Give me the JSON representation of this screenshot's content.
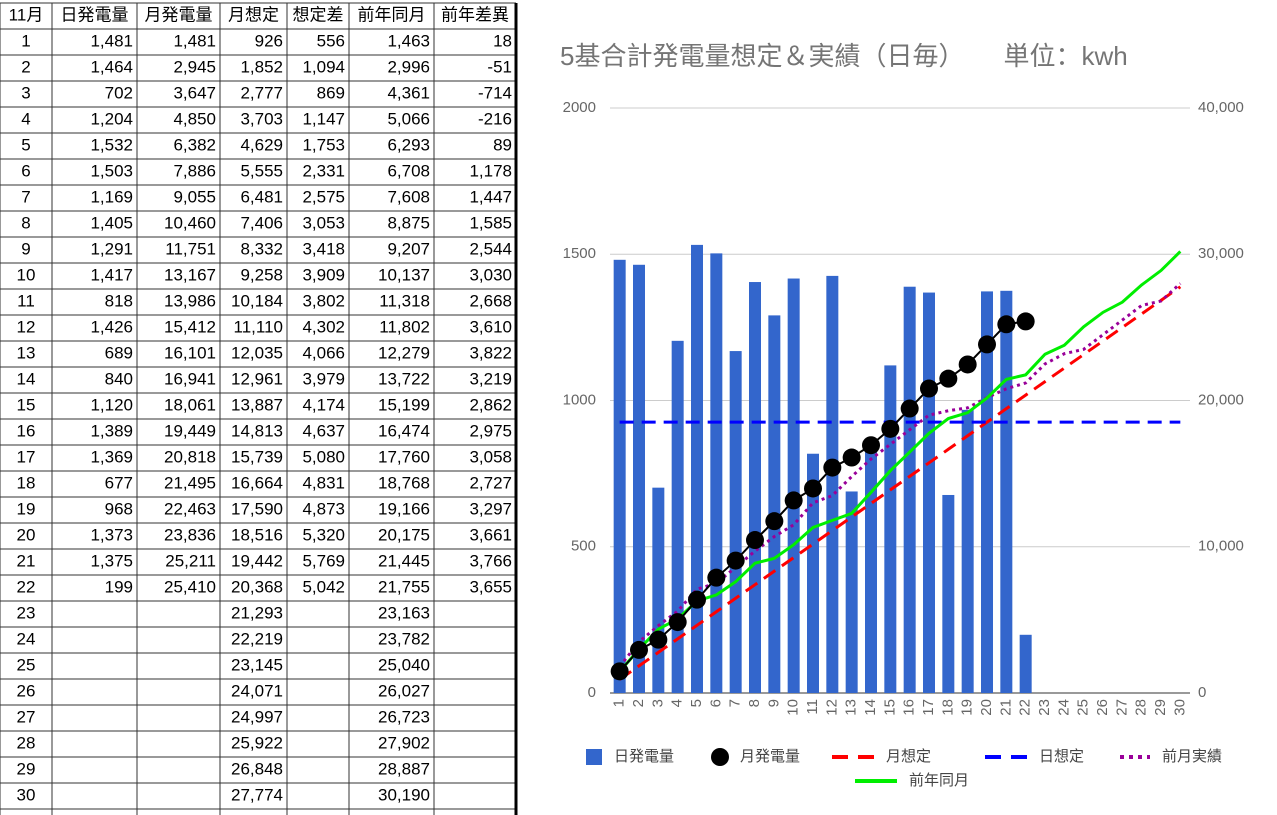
{
  "table": {
    "header": [
      "11月",
      "日発電量",
      "月発電量",
      "月想定",
      "想定差",
      "前年同月",
      "前年差異"
    ],
    "rows": [
      [
        "1",
        "1,481",
        "1,481",
        "926",
        "556",
        "1,463",
        "18"
      ],
      [
        "2",
        "1,464",
        "2,945",
        "1,852",
        "1,094",
        "2,996",
        "-51"
      ],
      [
        "3",
        "702",
        "3,647",
        "2,777",
        "869",
        "4,361",
        "-714"
      ],
      [
        "4",
        "1,204",
        "4,850",
        "3,703",
        "1,147",
        "5,066",
        "-216"
      ],
      [
        "5",
        "1,532",
        "6,382",
        "4,629",
        "1,753",
        "6,293",
        "89"
      ],
      [
        "6",
        "1,503",
        "7,886",
        "5,555",
        "2,331",
        "6,708",
        "1,178"
      ],
      [
        "7",
        "1,169",
        "9,055",
        "6,481",
        "2,575",
        "7,608",
        "1,447"
      ],
      [
        "8",
        "1,405",
        "10,460",
        "7,406",
        "3,053",
        "8,875",
        "1,585"
      ],
      [
        "9",
        "1,291",
        "11,751",
        "8,332",
        "3,418",
        "9,207",
        "2,544"
      ],
      [
        "10",
        "1,417",
        "13,167",
        "9,258",
        "3,909",
        "10,137",
        "3,030"
      ],
      [
        "11",
        "818",
        "13,986",
        "10,184",
        "3,802",
        "11,318",
        "2,668"
      ],
      [
        "12",
        "1,426",
        "15,412",
        "11,110",
        "4,302",
        "11,802",
        "3,610"
      ],
      [
        "13",
        "689",
        "16,101",
        "12,035",
        "4,066",
        "12,279",
        "3,822"
      ],
      [
        "14",
        "840",
        "16,941",
        "12,961",
        "3,979",
        "13,722",
        "3,219"
      ],
      [
        "15",
        "1,120",
        "18,061",
        "13,887",
        "4,174",
        "15,199",
        "2,862"
      ],
      [
        "16",
        "1,389",
        "19,449",
        "14,813",
        "4,637",
        "16,474",
        "2,975"
      ],
      [
        "17",
        "1,369",
        "20,818",
        "15,739",
        "5,080",
        "17,760",
        "3,058"
      ],
      [
        "18",
        "677",
        "21,495",
        "16,664",
        "4,831",
        "18,768",
        "2,727"
      ],
      [
        "19",
        "968",
        "22,463",
        "17,590",
        "4,873",
        "19,166",
        "3,297"
      ],
      [
        "20",
        "1,373",
        "23,836",
        "18,516",
        "5,320",
        "20,175",
        "3,661"
      ],
      [
        "21",
        "1,375",
        "25,211",
        "19,442",
        "5,769",
        "21,445",
        "3,766"
      ],
      [
        "22",
        "199",
        "25,410",
        "20,368",
        "5,042",
        "21,755",
        "3,655"
      ],
      [
        "23",
        null,
        null,
        "21,293",
        null,
        "23,163",
        null
      ],
      [
        "24",
        null,
        null,
        "22,219",
        null,
        "23,782",
        null
      ],
      [
        "25",
        null,
        null,
        "23,145",
        null,
        "25,040",
        null
      ],
      [
        "26",
        null,
        null,
        "24,071",
        null,
        "26,027",
        null
      ],
      [
        "27",
        null,
        null,
        "24,997",
        null,
        "26,723",
        null
      ],
      [
        "28",
        null,
        null,
        "25,922",
        null,
        "27,902",
        null
      ],
      [
        "29",
        null,
        null,
        "26,848",
        null,
        "28,887",
        null
      ],
      [
        "30",
        null,
        null,
        "27,774",
        null,
        "30,190",
        null
      ]
    ]
  },
  "chart_data": {
    "type": "combo",
    "title": "5基合計発電量想定＆実績（日毎）　　単位：kwh",
    "categories": [
      "1",
      "2",
      "3",
      "4",
      "5",
      "6",
      "7",
      "8",
      "9",
      "10",
      "11",
      "12",
      "13",
      "14",
      "15",
      "16",
      "17",
      "18",
      "19",
      "20",
      "21",
      "22",
      "23",
      "24",
      "25",
      "26",
      "27",
      "28",
      "29",
      "30"
    ],
    "ylim": [
      0,
      2000
    ],
    "yticks": [
      0,
      500,
      1000,
      1500,
      2000
    ],
    "y2lim": [
      0,
      40000
    ],
    "y2ticks": [
      0,
      {
        "value": 10000,
        "label": "10,000"
      },
      {
        "value": 20000,
        "label": "20,000"
      },
      {
        "value": 30000,
        "label": "30,000"
      },
      {
        "value": 40000,
        "label": "40,000"
      }
    ],
    "grid": true,
    "legend": "bottom",
    "series": [
      {
        "name": "日発電量",
        "type": "bar",
        "color": "#3366cc",
        "values": [
          1481,
          1464,
          702,
          1204,
          1532,
          1503,
          1169,
          1405,
          1291,
          1417,
          818,
          1426,
          689,
          840,
          1120,
          1389,
          1369,
          677,
          968,
          1373,
          1375,
          199,
          null,
          null,
          null,
          null,
          null,
          null,
          null,
          null
        ]
      },
      {
        "name": "月発電量",
        "type": "line",
        "axis": "y2",
        "color": "#000000",
        "markers": true,
        "values": [
          1481,
          2945,
          3647,
          4850,
          6382,
          7886,
          9055,
          10460,
          11751,
          13167,
          13986,
          15412,
          16101,
          16941,
          18061,
          19449,
          20818,
          21495,
          22463,
          23836,
          25211,
          25410,
          null,
          null,
          null,
          null,
          null,
          null,
          null,
          null
        ]
      },
      {
        "name": "月想定",
        "type": "line",
        "axis": "y2",
        "color": "#ff0000",
        "dash": "dashed",
        "values": [
          926,
          1852,
          2777,
          3703,
          4629,
          5555,
          6481,
          7406,
          8332,
          9258,
          10184,
          11110,
          12035,
          12961,
          13887,
          14813,
          15739,
          16664,
          17590,
          18516,
          19442,
          20368,
          21293,
          22219,
          23145,
          24071,
          24997,
          25922,
          26848,
          27774
        ]
      },
      {
        "name": "日想定",
        "type": "line",
        "color": "#0000ff",
        "dash": "dashed",
        "values": [
          926,
          926,
          926,
          926,
          926,
          926,
          926,
          926,
          926,
          926,
          926,
          926,
          926,
          926,
          926,
          926,
          926,
          926,
          926,
          926,
          926,
          926,
          926,
          926,
          926,
          926,
          926,
          926,
          926,
          926
        ]
      },
      {
        "name": "前月実績",
        "type": "line",
        "axis": "y2",
        "color": "#990099",
        "dash": "dotted",
        "values": [
          1800,
          3500,
          4600,
          5600,
          7100,
          7500,
          8600,
          9700,
          10700,
          11500,
          13000,
          13500,
          14800,
          16000,
          17000,
          18000,
          19000,
          19300,
          19500,
          20200,
          20800,
          21200,
          22500,
          23200,
          23500,
          24500,
          25500,
          26500,
          26800,
          28000
        ]
      },
      {
        "name": "前年同月",
        "type": "line",
        "axis": "y2",
        "color": "#00ee00",
        "values": [
          1463,
          2996,
          4361,
          5066,
          6293,
          6708,
          7608,
          8875,
          9207,
          10137,
          11318,
          11802,
          12279,
          13722,
          15199,
          16474,
          17760,
          18768,
          19166,
          20175,
          21445,
          21755,
          23163,
          23782,
          25040,
          26027,
          26723,
          27902,
          28887,
          30190
        ]
      }
    ]
  }
}
